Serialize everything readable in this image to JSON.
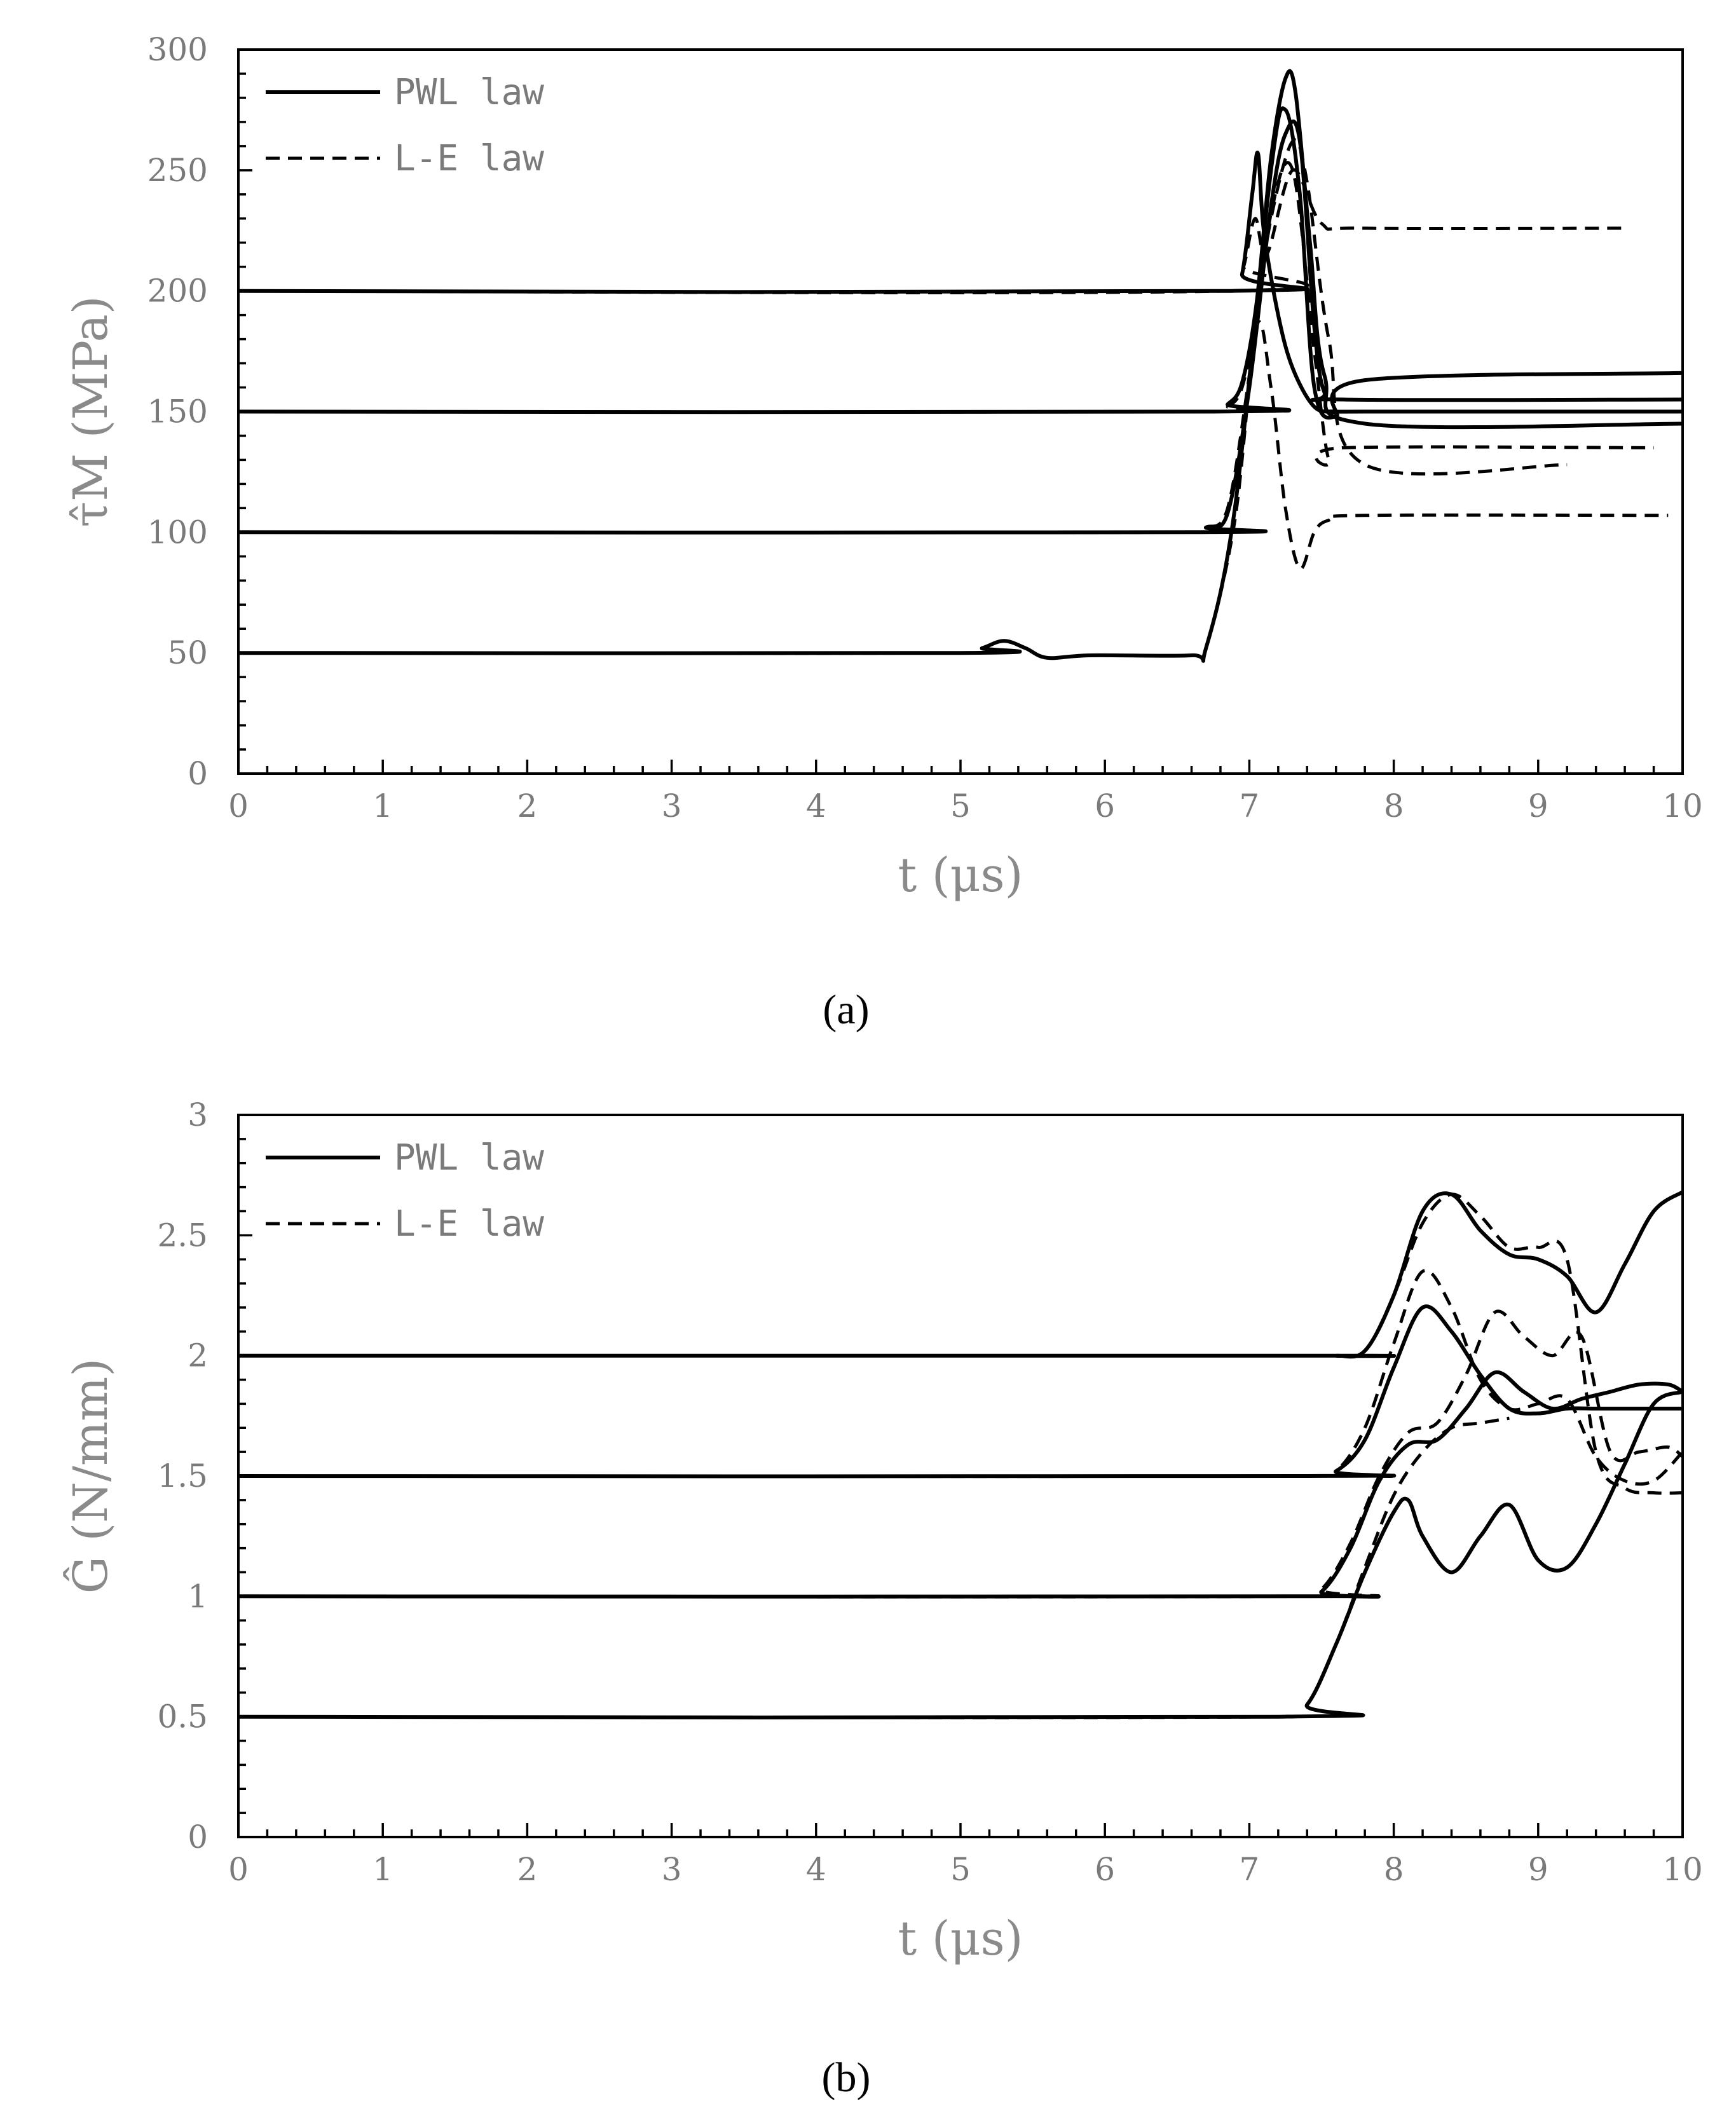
{
  "chart_data": [
    {
      "type": "line",
      "panel": "(a)",
      "xlabel": "t  (μs)",
      "ylabel": "τ̂M  (MPa)",
      "xlim": [
        0,
        10
      ],
      "ylim": [
        0,
        300
      ],
      "xticks": [
        "0",
        "1",
        "2",
        "3",
        "4",
        "5",
        "6",
        "7",
        "8",
        "9",
        "10"
      ],
      "yticks": [
        "0",
        "50",
        "100",
        "150",
        "200",
        "250",
        "300"
      ],
      "legend": {
        "position": "top-left",
        "entries": [
          {
            "label": "PWL law",
            "style": "solid"
          },
          {
            "label": "L-E law",
            "style": "dashed"
          }
        ]
      },
      "series": [
        {
          "style": "solid",
          "x": [
            0,
            6.87,
            6.95,
            7.02,
            7.06,
            7.1,
            7.2,
            7.3,
            7.45,
            7.6,
            7.8,
            10
          ],
          "y": [
            200,
            200,
            207,
            240,
            257,
            225,
            190,
            168,
            152,
            150,
            150,
            150
          ]
        },
        {
          "style": "dashed",
          "x": [
            0,
            6.87,
            6.96,
            7.04,
            7.12,
            7.3,
            7.5,
            7.8,
            9.6
          ],
          "y": [
            200,
            200,
            210,
            230,
            215,
            250,
            228,
            226,
            226
          ]
        },
        {
          "style": "solid",
          "x": [
            0,
            6.75,
            6.85,
            6.95,
            7.05,
            7.15,
            7.25,
            7.32,
            7.42,
            7.52,
            7.8,
            10
          ],
          "y": [
            150,
            150,
            153,
            162,
            195,
            255,
            288,
            282,
            220,
            165,
            145,
            145
          ]
        },
        {
          "style": "dashed",
          "x": [
            0,
            6.75,
            6.85,
            6.95,
            7.05,
            7.15,
            7.3,
            7.4,
            7.55,
            7.8,
            9.2
          ],
          "y": [
            150,
            150,
            152,
            160,
            190,
            230,
            262,
            245,
            180,
            128,
            128
          ]
        },
        {
          "style": "solid",
          "x": [
            0,
            6.6,
            6.7,
            6.85,
            7.0,
            7.15,
            7.25,
            7.35,
            7.45,
            7.52,
            7.65,
            10
          ],
          "y": [
            100,
            100,
            102,
            108,
            160,
            235,
            265,
            262,
            185,
            158,
            155,
            155
          ]
        },
        {
          "style": "dashed",
          "x": [
            0,
            6.6,
            6.7,
            6.85,
            7.0,
            7.15,
            7.3,
            7.45,
            7.55,
            7.65,
            9.8
          ],
          "y": [
            100,
            100,
            102,
            110,
            165,
            232,
            250,
            175,
            130,
            135,
            135
          ]
        },
        {
          "style": "solid",
          "x": [
            0,
            5.0,
            5.15,
            5.3,
            5.45,
            5.6,
            5.9,
            6.6,
            6.7,
            6.9,
            7.15,
            7.25,
            7.35,
            7.45,
            7.6,
            7.8,
            10
          ],
          "y": [
            50,
            50,
            52,
            55,
            52,
            48,
            49,
            49,
            52,
            110,
            250,
            275,
            240,
            160,
            148,
            163,
            166
          ]
        },
        {
          "style": "dashed",
          "x": [
            0,
            5.0,
            5.15,
            5.3,
            5.45,
            5.6,
            5.9,
            6.6,
            6.7,
            6.9,
            7.05,
            7.15,
            7.25,
            7.35,
            7.45,
            7.55,
            7.8,
            9.9
          ],
          "y": [
            50,
            50,
            52,
            55,
            52,
            48,
            49,
            49,
            52,
            105,
            185,
            160,
            110,
            85,
            100,
            105,
            107,
            107
          ]
        }
      ]
    },
    {
      "type": "line",
      "panel": "(b)",
      "xlabel": "t  (μs)",
      "ylabel": "Ĝ  (N/mm)",
      "xlim": [
        0,
        10
      ],
      "ylim": [
        0,
        3
      ],
      "xticks": [
        "0",
        "1",
        "2",
        "3",
        "4",
        "5",
        "6",
        "7",
        "8",
        "9",
        "10"
      ],
      "yticks": [
        "0",
        "0.5",
        "1",
        "1.5",
        "2",
        "2.5",
        "3"
      ],
      "legend": {
        "position": "top-left",
        "entries": [
          {
            "label": "PWL law",
            "style": "solid"
          },
          {
            "label": "L-E law",
            "style": "dashed"
          }
        ]
      },
      "series": [
        {
          "style": "solid",
          "x": [
            0,
            7.4,
            7.6,
            7.8,
            8.0,
            8.2,
            8.4,
            8.6,
            8.8,
            9.0,
            9.2,
            9.4,
            9.6,
            9.8,
            10
          ],
          "y": [
            2,
            2,
            2,
            2.02,
            2.25,
            2.6,
            2.67,
            2.52,
            2.42,
            2.4,
            2.33,
            2.18,
            2.38,
            2.6,
            2.68
          ]
        },
        {
          "style": "dashed",
          "x": [
            0,
            7.4,
            7.6,
            7.8,
            8.0,
            8.2,
            8.4,
            8.6,
            8.8,
            9.0,
            9.2,
            9.4,
            9.6,
            9.8,
            10
          ],
          "y": [
            2,
            2,
            2,
            2.02,
            2.25,
            2.55,
            2.67,
            2.58,
            2.45,
            2.45,
            2.4,
            1.6,
            1.45,
            1.43,
            1.43
          ]
        },
        {
          "style": "solid",
          "x": [
            0,
            7.4,
            7.6,
            7.8,
            8.0,
            8.2,
            8.4,
            8.6,
            8.8,
            9.0,
            9.2,
            9.4,
            9.6,
            9.8,
            10
          ],
          "y": [
            1.5,
            1.5,
            1.52,
            1.65,
            1.95,
            2.2,
            2.1,
            1.92,
            1.78,
            1.76,
            1.78,
            1.78,
            1.78,
            1.78,
            1.78
          ]
        },
        {
          "style": "dashed",
          "x": [
            0,
            7.4,
            7.6,
            7.8,
            8.0,
            8.2,
            8.4,
            8.6,
            8.8,
            9.0,
            9.2,
            9.4,
            9.6,
            9.8,
            10
          ],
          "y": [
            1.5,
            1.5,
            1.52,
            1.7,
            2.05,
            2.35,
            2.2,
            1.9,
            1.78,
            1.8,
            1.82,
            1.58,
            1.48,
            1.48,
            1.6
          ]
        },
        {
          "style": "solid",
          "x": [
            0,
            7.3,
            7.5,
            7.7,
            7.9,
            8.1,
            8.3,
            8.5,
            8.7,
            8.9,
            9.1,
            9.3,
            9.5,
            9.7,
            9.9,
            10
          ],
          "y": [
            1,
            1,
            1.02,
            1.2,
            1.48,
            1.63,
            1.65,
            1.78,
            1.93,
            1.85,
            1.78,
            1.82,
            1.85,
            1.88,
            1.88,
            1.85
          ]
        },
        {
          "style": "dashed",
          "x": [
            0,
            7.3,
            7.5,
            7.7,
            7.9,
            8.1,
            8.3,
            8.5,
            8.7,
            8.9,
            9.1,
            9.3,
            9.5,
            9.7,
            9.9,
            10
          ],
          "y": [
            1,
            1,
            1.03,
            1.22,
            1.5,
            1.68,
            1.72,
            1.92,
            2.18,
            2.08,
            2.0,
            2.08,
            1.6,
            1.6,
            1.62,
            1.58
          ]
        },
        {
          "style": "solid",
          "x": [
            0,
            7.2,
            7.4,
            7.6,
            7.8,
            8.0,
            8.1,
            8.2,
            8.4,
            8.6,
            8.8,
            9.0,
            9.2,
            9.4,
            9.6,
            9.8,
            10
          ],
          "y": [
            0.5,
            0.5,
            0.55,
            0.8,
            1.1,
            1.35,
            1.4,
            1.25,
            1.1,
            1.25,
            1.38,
            1.15,
            1.12,
            1.3,
            1.55,
            1.8,
            1.85
          ]
        },
        {
          "style": "dashed",
          "x": [
            0,
            7.2,
            7.4,
            7.6,
            7.8,
            8.0,
            8.2,
            8.4,
            8.6,
            8.8
          ],
          "y": [
            0.5,
            0.5,
            0.55,
            0.8,
            1.12,
            1.42,
            1.6,
            1.7,
            1.72,
            1.74
          ]
        }
      ]
    }
  ],
  "captions": {
    "a": "(a)",
    "b": "(b)"
  }
}
